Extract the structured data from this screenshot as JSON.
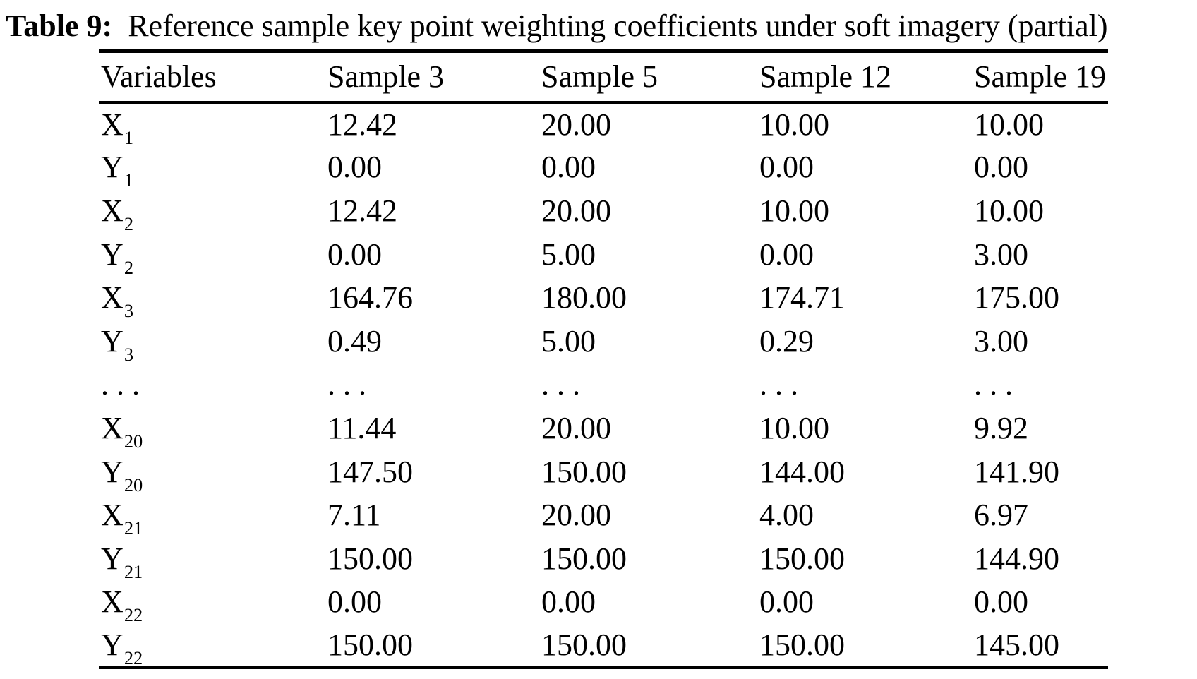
{
  "colors": {
    "background": "#ffffff",
    "text": "#000000",
    "rule": "#000000"
  },
  "caption": {
    "label": "Table 9:",
    "text": "Reference sample key point weighting coefficients under soft imagery (partial)"
  },
  "table": {
    "columns": [
      "Variables",
      "Sample 3",
      "Sample 5",
      "Sample 12",
      "Sample 19"
    ],
    "rows": [
      {
        "var": "X",
        "sub": "1",
        "values": [
          "12.42",
          "20.00",
          "10.00",
          "10.00"
        ]
      },
      {
        "var": "Y",
        "sub": "1",
        "values": [
          "0.00",
          "0.00",
          "0.00",
          "0.00"
        ]
      },
      {
        "var": "X",
        "sub": "2",
        "values": [
          "12.42",
          "20.00",
          "10.00",
          "10.00"
        ]
      },
      {
        "var": "Y",
        "sub": "2",
        "values": [
          "0.00",
          "5.00",
          "0.00",
          "3.00"
        ]
      },
      {
        "var": "X",
        "sub": "3",
        "values": [
          "164.76",
          "180.00",
          "174.71",
          "175.00"
        ]
      },
      {
        "var": "Y",
        "sub": "3",
        "values": [
          "0.49",
          "5.00",
          "0.29",
          "3.00"
        ]
      },
      {
        "var": ". . .",
        "sub": "",
        "values": [
          ". . .",
          ". . .",
          ". . .",
          ". . ."
        ]
      },
      {
        "var": "X",
        "sub": "20",
        "values": [
          "11.44",
          "20.00",
          "10.00",
          "9.92"
        ]
      },
      {
        "var": "Y",
        "sub": "20",
        "values": [
          "147.50",
          "150.00",
          "144.00",
          "141.90"
        ]
      },
      {
        "var": "X",
        "sub": "21",
        "values": [
          "7.11",
          "20.00",
          "4.00",
          "6.97"
        ]
      },
      {
        "var": "Y",
        "sub": "21",
        "values": [
          "150.00",
          "150.00",
          "150.00",
          "144.90"
        ]
      },
      {
        "var": "X",
        "sub": "22",
        "values": [
          "0.00",
          "0.00",
          "0.00",
          "0.00"
        ]
      },
      {
        "var": "Y",
        "sub": "22",
        "values": [
          "150.00",
          "150.00",
          "150.00",
          "145.00"
        ]
      }
    ]
  }
}
